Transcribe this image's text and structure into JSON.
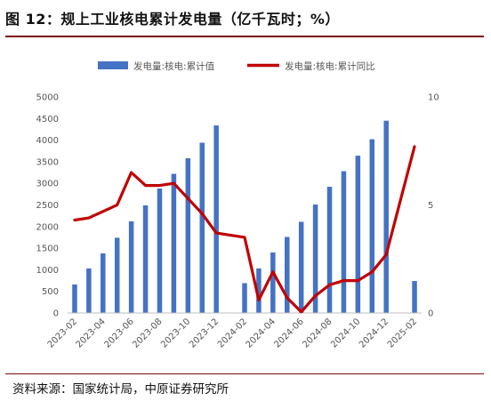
{
  "figure": {
    "title": "图 12：规上工业核电累计发电量（亿千瓦时；%）",
    "source": "资料来源：国家统计局，中原证券研究所"
  },
  "colors": {
    "bar": "#4472C4",
    "line": "#C00000",
    "rule": "#7a0a0a"
  },
  "chart_data": {
    "type": "bar",
    "categories": [
      "2023-02",
      "2023-03",
      "2023-04",
      "2023-05",
      "2023-06",
      "2023-07",
      "2023-08",
      "2023-09",
      "2023-10",
      "2023-11",
      "2023-12",
      "2024-01",
      "2024-02",
      "2024-03",
      "2024-04",
      "2024-05",
      "2024-06",
      "2024-07",
      "2024-08",
      "2024-09",
      "2024-10",
      "2024-11",
      "2024-12",
      "2025-01",
      "2025-02"
    ],
    "x_tick_labels": [
      "2023-02",
      "2023-04",
      "2023-06",
      "2023-08",
      "2023-10",
      "2023-12",
      "2024-02",
      "2024-04",
      "2024-06",
      "2024-08",
      "2024-10",
      "2024-12",
      "2025-02"
    ],
    "series": [
      {
        "name": "发电量:核电:累计值",
        "type": "bar",
        "axis": "left",
        "values": [
          660,
          1030,
          1380,
          1740,
          2120,
          2490,
          2880,
          3220,
          3580,
          3940,
          4340,
          null,
          690,
          1030,
          1400,
          1760,
          2110,
          2510,
          2920,
          3280,
          3640,
          4020,
          4450,
          null,
          740
        ]
      },
      {
        "name": "发电量:核电:累计同比",
        "type": "line",
        "axis": "right",
        "values": [
          4.3,
          4.4,
          4.7,
          5.0,
          6.5,
          5.9,
          5.9,
          6.0,
          5.3,
          4.6,
          3.7,
          null,
          3.5,
          0.6,
          1.9,
          0.7,
          0.05,
          0.8,
          1.3,
          1.5,
          1.5,
          1.9,
          2.7,
          null,
          7.7
        ]
      }
    ],
    "y_left": {
      "ticks": [
        "0",
        "500",
        "1000",
        "1500",
        "2000",
        "2500",
        "3000",
        "3500",
        "4000",
        "4500",
        "5000"
      ],
      "min": 0,
      "max": 5000
    },
    "y_right": {
      "ticks": [
        "0",
        "5",
        "10"
      ],
      "min": 0,
      "max": 10
    },
    "legend_placement": "top-center",
    "grid": false
  }
}
